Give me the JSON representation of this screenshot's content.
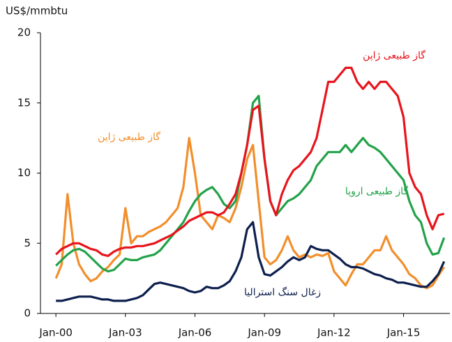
{
  "chart_data": {
    "type": "line",
    "y_label": "US$/mmbtu",
    "x": [
      "2000-01",
      "2000-04",
      "2000-07",
      "2000-10",
      "2001-01",
      "2001-04",
      "2001-07",
      "2001-10",
      "2002-01",
      "2002-04",
      "2002-07",
      "2002-10",
      "2003-01",
      "2003-04",
      "2003-07",
      "2003-10",
      "2004-01",
      "2004-04",
      "2004-07",
      "2004-10",
      "2005-01",
      "2005-04",
      "2005-07",
      "2005-10",
      "2006-01",
      "2006-04",
      "2006-07",
      "2006-10",
      "2007-01",
      "2007-04",
      "2007-07",
      "2007-10",
      "2008-01",
      "2008-04",
      "2008-07",
      "2008-10",
      "2009-01",
      "2009-04",
      "2009-07",
      "2009-10",
      "2010-01",
      "2010-04",
      "2010-07",
      "2010-10",
      "2011-01",
      "2011-04",
      "2011-07",
      "2011-10",
      "2012-01",
      "2012-04",
      "2012-07",
      "2012-10",
      "2013-01",
      "2013-04",
      "2013-07",
      "2013-10",
      "2014-01",
      "2014-04",
      "2014-07",
      "2014-10",
      "2015-01",
      "2015-04",
      "2015-07",
      "2015-10",
      "2016-01",
      "2016-04",
      "2016-07",
      "2016-10"
    ],
    "series": [
      {
        "name": "گاز طبیعی ژاپن",
        "color": "#f28e2b",
        "values": [
          2.5,
          3.5,
          8.5,
          5.0,
          3.5,
          2.8,
          2.3,
          2.5,
          3.0,
          3.3,
          3.8,
          4.2,
          7.5,
          5.0,
          5.5,
          5.5,
          5.8,
          6.0,
          6.2,
          6.5,
          7.0,
          7.5,
          9.0,
          12.5,
          10,
          7,
          6.5,
          6.0,
          7.0,
          6.8,
          6.5,
          7.5,
          9,
          11,
          12,
          8,
          4.0,
          3.5,
          3.8,
          4.5,
          5.5,
          4.5,
          4.0,
          4.2,
          4.0,
          4.2,
          4.1,
          4.3,
          3.0,
          2.5,
          2.0,
          2.8,
          3.5,
          3.5,
          4.0,
          4.5,
          4.5,
          5.5,
          4.5,
          4.0,
          3.5,
          2.8,
          2.5,
          2.0,
          1.8,
          2.0,
          2.7,
          3.3
        ]
      },
      {
        "name": "زغال سنگ استرالیا",
        "color": "#0d1f4d",
        "values": [
          0.9,
          0.9,
          1.0,
          1.1,
          1.2,
          1.2,
          1.2,
          1.1,
          1.0,
          1.0,
          0.9,
          0.9,
          0.9,
          1.0,
          1.1,
          1.3,
          1.7,
          2.1,
          2.2,
          2.1,
          2.0,
          1.9,
          1.8,
          1.6,
          1.5,
          1.6,
          1.9,
          1.8,
          1.8,
          2.0,
          2.3,
          3.0,
          4.0,
          6.0,
          6.5,
          4.0,
          2.8,
          2.7,
          3.0,
          3.3,
          3.7,
          4.0,
          3.8,
          4.0,
          4.8,
          4.6,
          4.5,
          4.5,
          4.2,
          3.9,
          3.5,
          3.3,
          3.3,
          3.2,
          3.0,
          2.8,
          2.7,
          2.5,
          2.4,
          2.2,
          2.2,
          2.1,
          2.0,
          1.9,
          1.9,
          2.3,
          2.8,
          3.7
        ]
      },
      {
        "name": "گاز طبیعی اروپا",
        "color": "#22a24a",
        "values": [
          3.4,
          3.8,
          4.2,
          4.5,
          4.6,
          4.4,
          4.0,
          3.6,
          3.2,
          3.0,
          3.1,
          3.5,
          3.9,
          3.8,
          3.8,
          4.0,
          4.1,
          4.2,
          4.5,
          5.0,
          5.5,
          6.0,
          6.5,
          7.3,
          8.0,
          8.5,
          8.8,
          9.0,
          8.5,
          7.8,
          7.5,
          8.0,
          10,
          12,
          15,
          15.5,
          11,
          8,
          7,
          7.5,
          8,
          8.2,
          8.5,
          9.0,
          9.5,
          10.5,
          11,
          11.5,
          11.5,
          11.5,
          12,
          11.5,
          12,
          12.5,
          12,
          11.8,
          11.5,
          11,
          10.5,
          10,
          9.5,
          8,
          7,
          6.5,
          5,
          4.2,
          4.3,
          5.4
        ]
      },
      {
        "name": "گاز طبیعی ژاپن",
        "color": "#e8141c",
        "values": [
          4.2,
          4.6,
          4.8,
          5.0,
          5.0,
          4.8,
          4.6,
          4.5,
          4.2,
          4.1,
          4.4,
          4.6,
          4.7,
          4.7,
          4.8,
          4.8,
          4.9,
          5.0,
          5.2,
          5.4,
          5.6,
          5.9,
          6.2,
          6.6,
          6.8,
          7.0,
          7.2,
          7.2,
          7.0,
          7.2,
          7.8,
          8.5,
          10,
          12,
          14.5,
          14.8,
          11,
          8,
          7,
          8.5,
          9.5,
          10.2,
          10.5,
          11,
          11.5,
          12.5,
          14.5,
          16.5,
          16.5,
          17,
          17.5,
          17.5,
          16.5,
          16,
          16.5,
          16,
          16.5,
          16.5,
          16,
          15.5,
          14,
          10,
          9,
          8.5,
          7,
          6,
          7,
          7.1
        ]
      }
    ],
    "xlim": [
      "1999-05",
      "2017-01"
    ],
    "xticks": [
      {
        "value": "2000-01",
        "label": "Jan-00"
      },
      {
        "value": "2003-01",
        "label": "Jan-03"
      },
      {
        "value": "2006-01",
        "label": "Jan-06"
      },
      {
        "value": "2009-01",
        "label": "Jan-09"
      },
      {
        "value": "2012-01",
        "label": "Jan-12"
      },
      {
        "value": "2015-01",
        "label": "Jan-15"
      }
    ],
    "ylim": [
      0,
      20
    ],
    "yticks": [
      0,
      5,
      10,
      15,
      20
    ],
    "grid": false
  }
}
